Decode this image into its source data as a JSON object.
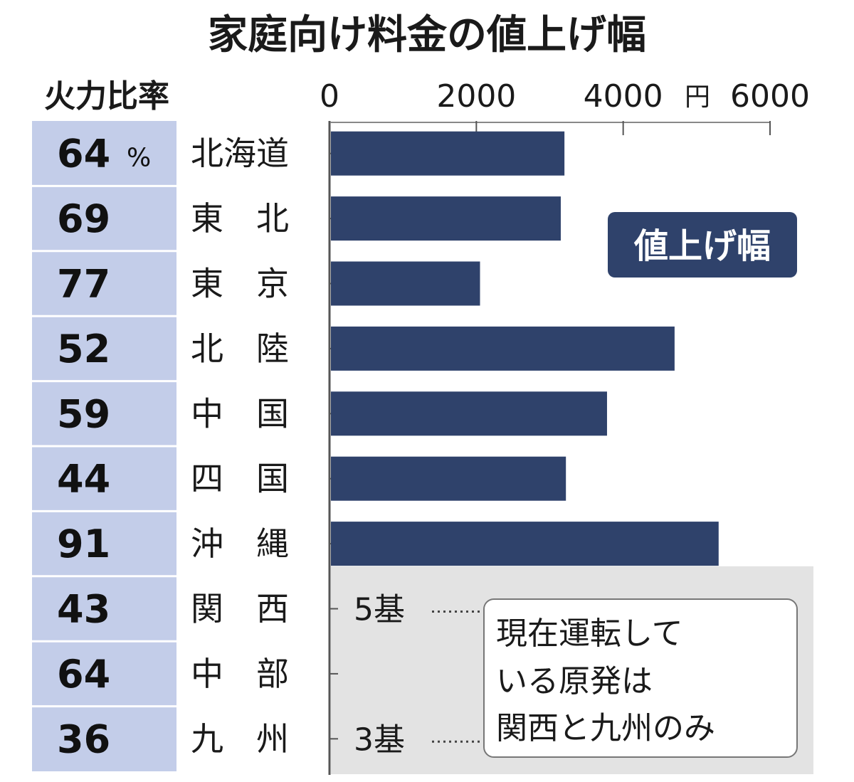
{
  "chart_data": {
    "type": "bar",
    "title": "家庭向け料金の値上げ幅",
    "ratio_header": "火力比率",
    "ratio_unit": "%",
    "x_unit": "円",
    "xlim": [
      0,
      6000
    ],
    "x_ticks": [
      0,
      2000,
      4000,
      6000
    ],
    "legend": "値上げ幅",
    "categories": [
      "北海道",
      "東　北",
      "東　京",
      "北　陸",
      "中　国",
      "四　国",
      "沖　縄",
      "関　西",
      "中　部",
      "九　州"
    ],
    "thermal_ratio": [
      64,
      69,
      77,
      52,
      59,
      44,
      91,
      43,
      64,
      36
    ],
    "values": [
      3200,
      3150,
      2050,
      4700,
      3780,
      3220,
      5300,
      null,
      null,
      null
    ],
    "reactors": [
      {
        "category": "関　西",
        "label": "5基"
      },
      {
        "category": "九　州",
        "label": "3基"
      }
    ],
    "note": [
      "現在運転して",
      "いる原発は",
      "関西と九州のみ"
    ],
    "colors": {
      "bar": "#2f426b",
      "ratio_bg": "#c3cde9",
      "note_bg": "#e3e3e3",
      "legend_bg": "#2f426b"
    }
  }
}
